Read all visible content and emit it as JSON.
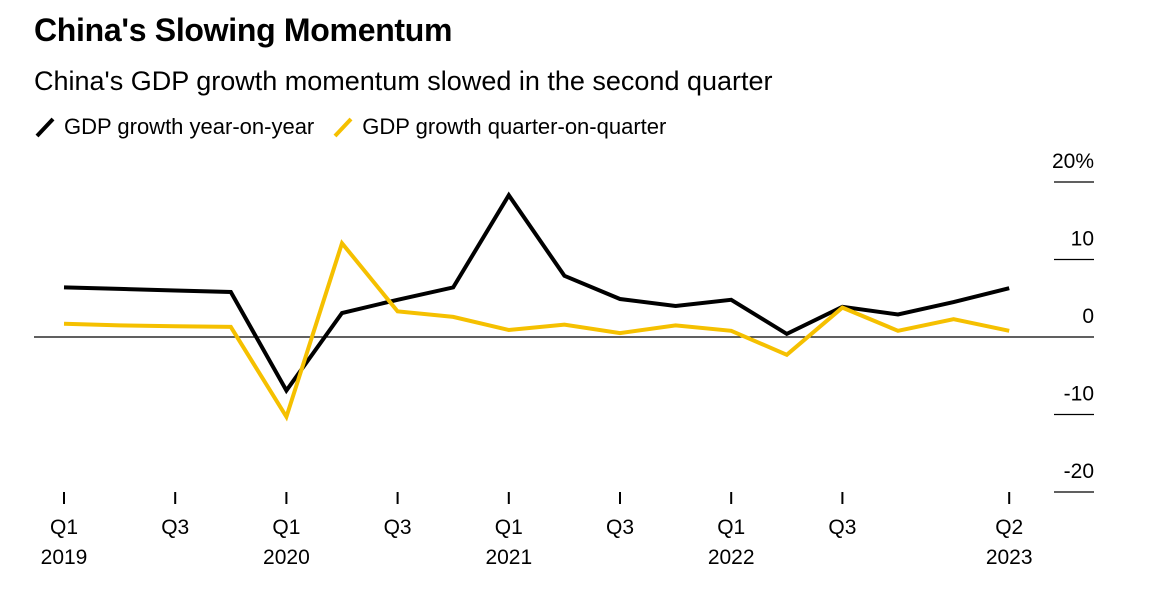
{
  "title": "China's Slowing Momentum",
  "subtitle": "China's GDP growth momentum slowed in the second quarter",
  "colors": {
    "yoy": "#000000",
    "qoq": "#f5c000",
    "axis": "#000000"
  },
  "chart_data": {
    "type": "line",
    "title": "China's Slowing Momentum",
    "subtitle": "China's GDP growth momentum slowed in the second quarter",
    "x": [
      "2019 Q1",
      "2019 Q2",
      "2019 Q3",
      "2019 Q4",
      "2020 Q1",
      "2020 Q2",
      "2020 Q3",
      "2020 Q4",
      "2021 Q1",
      "2021 Q2",
      "2021 Q3",
      "2021 Q4",
      "2022 Q1",
      "2022 Q2",
      "2022 Q3",
      "2022 Q4",
      "2023 Q1",
      "2023 Q2"
    ],
    "series": [
      {
        "name": "GDP growth year-on-year",
        "values": [
          6.4,
          6.2,
          6.0,
          5.8,
          -6.9,
          3.1,
          4.8,
          6.4,
          18.3,
          7.9,
          4.9,
          4.0,
          4.8,
          0.4,
          3.9,
          2.9,
          4.5,
          6.3
        ]
      },
      {
        "name": "GDP growth quarter-on-quarter",
        "values": [
          1.7,
          1.5,
          1.4,
          1.3,
          -10.3,
          12.1,
          3.3,
          2.6,
          0.9,
          1.6,
          0.5,
          1.5,
          0.8,
          -2.3,
          3.8,
          0.8,
          2.3,
          0.8
        ]
      }
    ],
    "ylim": [
      -20,
      20
    ],
    "yticks": [
      20,
      10,
      0,
      -10,
      -20
    ],
    "ytick_labels": [
      "20%",
      "10",
      "0",
      "-10",
      "-20"
    ],
    "xtick_labels": [
      {
        "top": "Q1",
        "bottom": "2019"
      },
      {
        "top": "Q3",
        "bottom": ""
      },
      {
        "top": "Q1",
        "bottom": "2020"
      },
      {
        "top": "Q3",
        "bottom": ""
      },
      {
        "top": "Q1",
        "bottom": "2021"
      },
      {
        "top": "Q3",
        "bottom": ""
      },
      {
        "top": "Q1",
        "bottom": "2022"
      },
      {
        "top": "Q3",
        "bottom": ""
      },
      {
        "top": "Q2",
        "bottom": "2023"
      }
    ],
    "xtick_indices": [
      0,
      2,
      4,
      6,
      8,
      10,
      12,
      14,
      17
    ],
    "grid": false,
    "legend_position": "top-left",
    "zero_line": true
  }
}
